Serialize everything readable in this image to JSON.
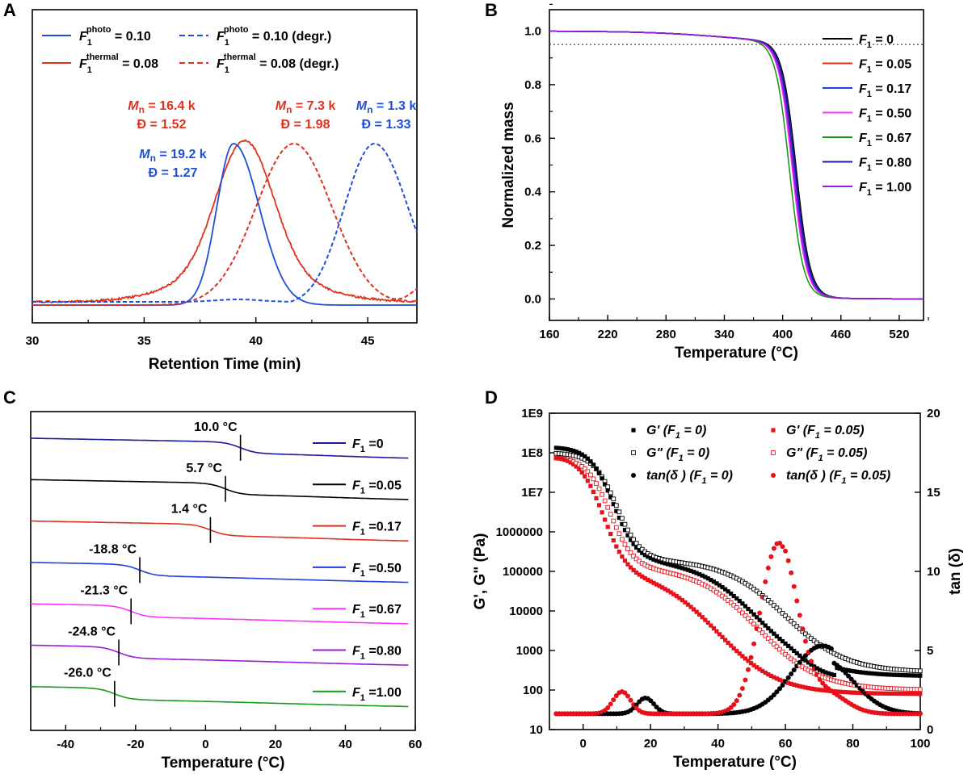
{
  "chart_data": [
    {
      "panel": "A",
      "type": "line",
      "xlabel": "Retention Time (min)",
      "xlim": [
        30,
        47.2
      ],
      "xticks": [
        "30",
        "35",
        "40",
        "45"
      ],
      "legend_placement": "top-left",
      "legend": [
        {
          "var": "F",
          "sub": "1",
          "sup": "photo",
          "rest": "= 0.10",
          "color": "#1f4fd8",
          "dash": false
        },
        {
          "var": "F",
          "sub": "1",
          "sup": "photo",
          "rest": "= 0.10 (degr.)",
          "color": "#1f4fd8",
          "dash": true
        },
        {
          "var": "F",
          "sub": "1",
          "sup": "thermal",
          "rest": "= 0.08",
          "color": "#e0311c",
          "dash": false
        },
        {
          "var": "F",
          "sub": "1",
          "sup": "thermal",
          "rest": "= 0.08 (degr.)",
          "color": "#e0311c",
          "dash": true
        }
      ],
      "annotations": [
        {
          "line1": "M",
          "line1_sub": "n",
          "line1_rest": "= 19.2 k",
          "line2": "Đ = 1.27",
          "color": "#1f4fd8"
        },
        {
          "line1": "M",
          "line1_sub": "n",
          "line1_rest": "= 16.4 k",
          "line2": "Đ = 1.52",
          "color": "#e0311c"
        },
        {
          "line1": "M",
          "line1_sub": "n",
          "line1_rest": "= 7.3 k",
          "line2": "Đ = 1.98",
          "color": "#e0311c"
        },
        {
          "line1": "M",
          "line1_sub": "n",
          "line1_rest": "= 1.3 k",
          "line2": "Đ = 1.33",
          "color": "#1f4fd8"
        }
      ]
    },
    {
      "panel": "B",
      "type": "line",
      "xlabel": "Temperature (°C)",
      "ylabel": "Normalized mass",
      "xlim": [
        160,
        545
      ],
      "ylim": [
        -0.08,
        1.08
      ],
      "xticks": [
        160,
        220,
        280,
        340,
        400,
        460,
        520
      ],
      "yticks": [
        "0.0",
        "0.2",
        "0.4",
        "0.6",
        "0.8",
        "1.0"
      ],
      "reference_line": 0.95,
      "legend_placement": "top-right",
      "series": [
        {
          "var": "F",
          "sub": "1",
          "rest": "= 0",
          "color": "#000000",
          "t50": 414
        },
        {
          "var": "F",
          "sub": "1",
          "rest": "= 0.05",
          "color": "#e0311c",
          "t50": 413
        },
        {
          "var": "F",
          "sub": "1",
          "rest": "= 0.17",
          "color": "#1f3fe0",
          "t50": 412
        },
        {
          "var": "F",
          "sub": "1",
          "rest": "= 0.50",
          "color": "#ff33ff",
          "t50": 410
        },
        {
          "var": "F",
          "sub": "1",
          "rest": "= 0.67",
          "color": "#1a9a1a",
          "t50": 407
        },
        {
          "var": "F",
          "sub": "1",
          "rest": "= 0.80",
          "color": "#1a1a9a",
          "t50": 413
        },
        {
          "var": "F",
          "sub": "1",
          "rest": "= 1.00",
          "color": "#9a1add",
          "t50": 411
        }
      ]
    },
    {
      "panel": "C",
      "type": "line",
      "xlabel": "Temperature (°C)",
      "xlim": [
        -50,
        60
      ],
      "xticks": [
        -40,
        -20,
        0,
        20,
        40,
        60
      ],
      "legend_placement": "right",
      "series": [
        {
          "var": "F",
          "sub": "1",
          "rest": "=0",
          "color": "#1a1a9a",
          "tg": 10.0,
          "tg_label": "10.0 °C"
        },
        {
          "var": "F",
          "sub": "1",
          "rest": "=0.05",
          "color": "#000000",
          "tg": 5.7,
          "tg_label": "5.7 °C"
        },
        {
          "var": "F",
          "sub": "1",
          "rest": "=0.17",
          "color": "#e0311c",
          "tg": 1.4,
          "tg_label": "1.4 °C"
        },
        {
          "var": "F",
          "sub": "1",
          "rest": "=0.50",
          "color": "#1f3fe0",
          "tg": -18.8,
          "tg_label": "-18.8 °C"
        },
        {
          "var": "F",
          "sub": "1",
          "rest": "=0.67",
          "color": "#ff33ff",
          "tg": -21.3,
          "tg_label": "-21.3 °C"
        },
        {
          "var": "F",
          "sub": "1",
          "rest": "=0.80",
          "color": "#9a1add",
          "tg": -24.8,
          "tg_label": "-24.8 °C"
        },
        {
          "var": "F",
          "sub": "1",
          "rest": "=1.00",
          "color": "#1a9a1a",
          "tg": -26.0,
          "tg_label": "-26.0 °C"
        }
      ]
    },
    {
      "panel": "D",
      "type": "scatter",
      "xlabel": "Temperature (°C)",
      "ylabel_left": "G', G\" (Pa)",
      "ylabel_right": "tan (δ)",
      "xlim": [
        -10,
        100
      ],
      "xticks": [
        0,
        20,
        40,
        60,
        80,
        100
      ],
      "y_left_scale": "log",
      "y_left_ticks": [
        "1E9",
        "1E8",
        "1E7",
        "1000000",
        "100000",
        "10000",
        "1000",
        "100",
        "10"
      ],
      "y_right_lim": [
        0,
        20
      ],
      "y_right_ticks": [
        0,
        5,
        10,
        15,
        20
      ],
      "legend_placement": "top-right",
      "series": [
        {
          "label": "G' (F1 = 0)",
          "marker": "square-filled",
          "color": "#000000"
        },
        {
          "label": "G\" (F1 = 0)",
          "marker": "square-open",
          "color": "#000000"
        },
        {
          "label": "tan(δ) (F1 = 0)",
          "marker": "circle-filled",
          "color": "#000000"
        },
        {
          "label": "G' (F1 = 0.05)",
          "marker": "square-filled",
          "color": "#e8111a"
        },
        {
          "label": "G\" (F1 = 0.05)",
          "marker": "square-open",
          "color": "#e8111a"
        },
        {
          "label": "tan(δ) (F1 = 0.05)",
          "marker": "circle-filled",
          "color": "#e8111a"
        }
      ],
      "legend": [
        {
          "text": "G' (F",
          "sub": "1",
          "tail": " = 0)"
        },
        {
          "text": "G\" (F",
          "sub": "1",
          "tail": " = 0)"
        },
        {
          "text": "tan(δ ) (F",
          "sub": "1",
          "tail": " = 0)"
        },
        {
          "text": "G' (F",
          "sub": "1",
          "tail": " = 0.05)"
        },
        {
          "text": "G\" (F",
          "sub": "1",
          "tail": " = 0.05)"
        },
        {
          "text": "tan(δ ) (F",
          "sub": "1",
          "tail": " = 0.05)"
        }
      ]
    }
  ]
}
